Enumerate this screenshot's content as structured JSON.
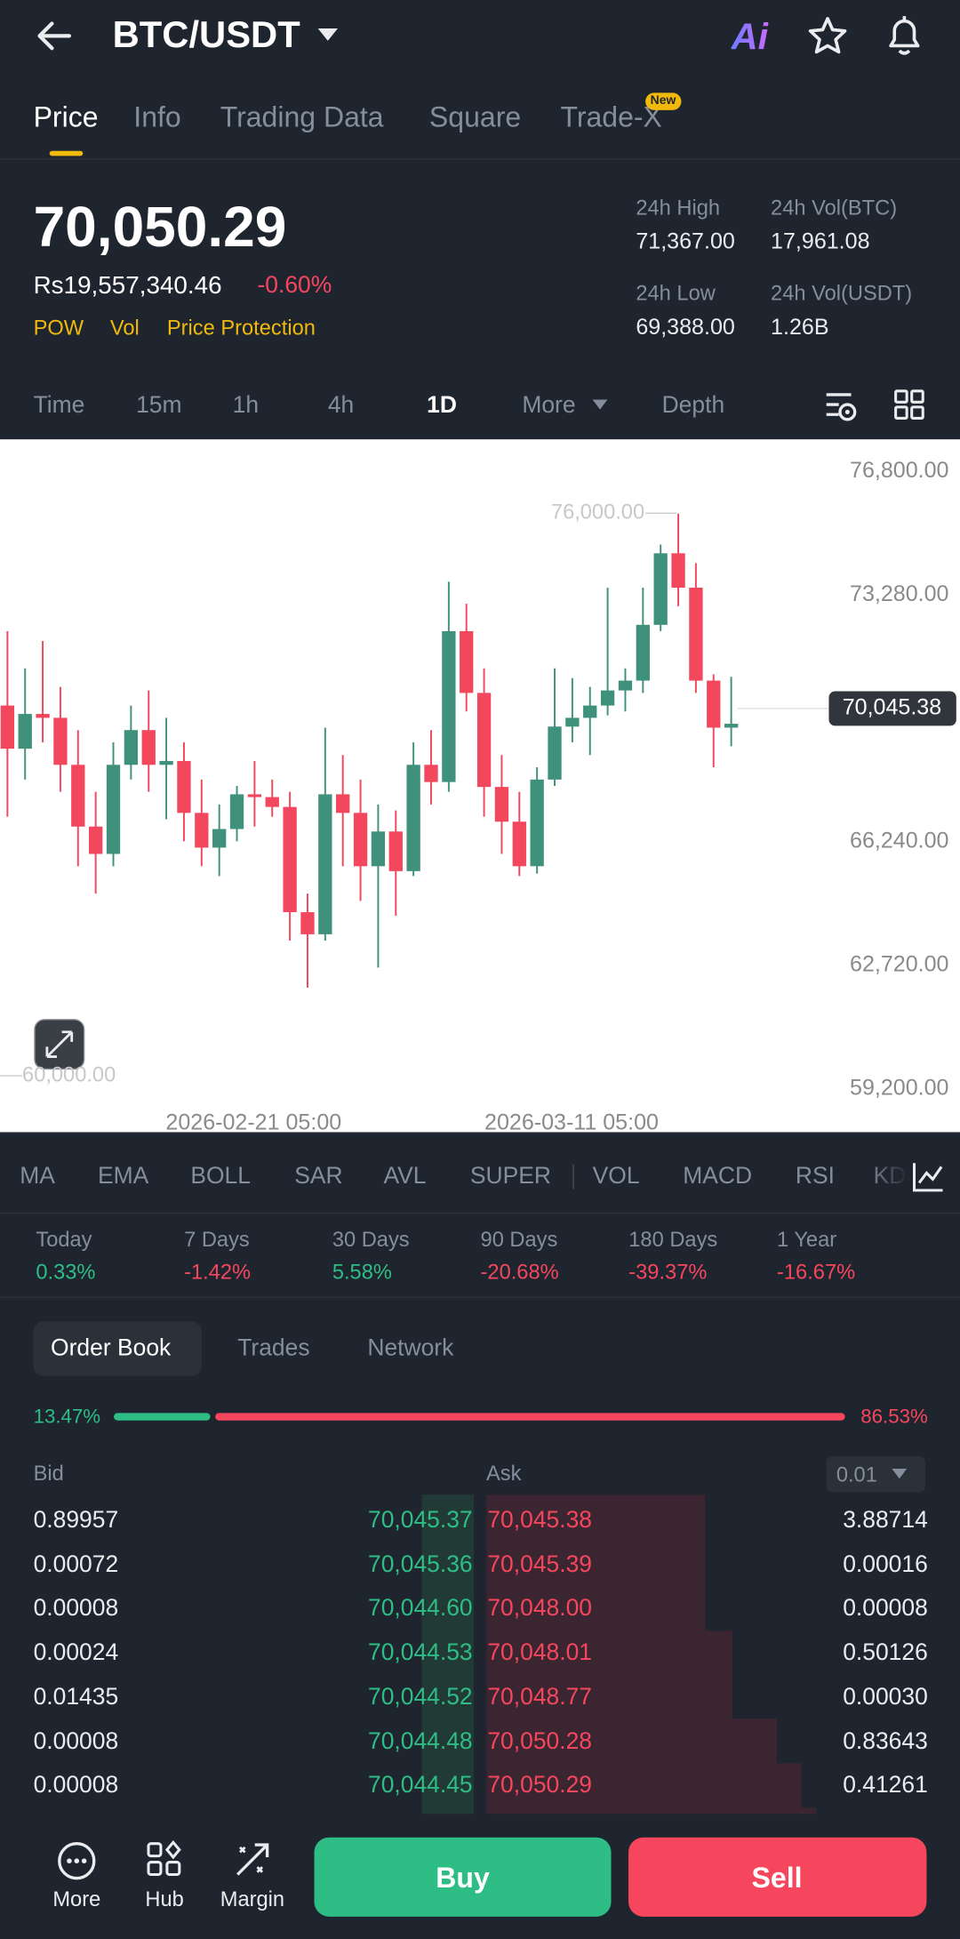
{
  "header": {
    "title": "BTC/USDT",
    "ai_button": "Ai"
  },
  "tabs": [
    "Price",
    "Info",
    "Trading Data",
    "Square",
    "Trade-X"
  ],
  "new_badge": "New",
  "ticker": {
    "price": "70,050.29",
    "fiat_price": "Rs19,557,340.46",
    "change": "-0.60%",
    "tags": [
      "POW",
      "Vol",
      "Price Protection"
    ],
    "stats": [
      {
        "label": "24h High",
        "value": "71,367.00"
      },
      {
        "label": "24h Vol(BTC)",
        "value": "17,961.08"
      },
      {
        "label": "24h Low",
        "value": "69,388.00"
      },
      {
        "label": "24h Vol(USDT)",
        "value": "1.26B"
      }
    ]
  },
  "intervals": [
    "Time",
    "15m",
    "1h",
    "4h",
    "1D",
    "More",
    "Depth"
  ],
  "chart_data": {
    "type": "candlestick",
    "ylim": [
      57970,
      77720
    ],
    "yticks": [
      {
        "value": 76800,
        "label": "76,800.00"
      },
      {
        "value": 73280,
        "label": "73,280.00"
      },
      {
        "value": 66240,
        "label": "66,240.00"
      },
      {
        "value": 62720,
        "label": "62,720.00"
      },
      {
        "value": 59200,
        "label": "59,200.00"
      }
    ],
    "open": [
      70130,
      68900,
      69890,
      69780,
      68440,
      66680,
      65900,
      68440,
      69430,
      68440,
      68550,
      67070,
      66080,
      66610,
      67600,
      67520,
      67240,
      64240,
      63610,
      67600,
      67070,
      65550,
      66540,
      65410,
      68440,
      67950,
      72250,
      70490,
      67810,
      66820,
      65550,
      68020,
      69530,
      69780,
      70130,
      70560,
      70840,
      72430,
      74470,
      73490,
      70840,
      69500
    ],
    "high": [
      72250,
      71190,
      71970,
      70660,
      69430,
      67670,
      69080,
      70130,
      70560,
      69780,
      69080,
      68020,
      67310,
      67840,
      68550,
      68020,
      67670,
      64770,
      69500,
      68720,
      68020,
      67310,
      67140,
      69080,
      69430,
      73660,
      73030,
      71190,
      68720,
      67670,
      68370,
      71190,
      70910,
      70660,
      73490,
      71190,
      73490,
      74720,
      75600,
      74190,
      71020,
      70950
    ],
    "low": [
      66960,
      68020,
      69080,
      67670,
      65550,
      64770,
      65550,
      68020,
      67670,
      66890,
      66260,
      65550,
      65270,
      66260,
      66680,
      66960,
      63430,
      62090,
      63430,
      65550,
      64560,
      62660,
      64140,
      65270,
      67310,
      67670,
      69960,
      66960,
      65900,
      65270,
      65340,
      67840,
      69080,
      68720,
      69850,
      69960,
      70490,
      72250,
      72960,
      70490,
      68370,
      68970
    ],
    "close": [
      68900,
      69890,
      69780,
      68440,
      66680,
      65900,
      68440,
      69430,
      68440,
      68550,
      67070,
      66080,
      66610,
      67600,
      67520,
      67240,
      64240,
      63610,
      67600,
      67070,
      65550,
      66540,
      65410,
      68440,
      67950,
      72250,
      70490,
      67810,
      66820,
      65550,
      68020,
      69530,
      69780,
      70130,
      70560,
      70840,
      72430,
      74470,
      73490,
      70840,
      69500,
      69610
    ],
    "up_color": "#3f917b",
    "down_color": "#f2475d",
    "last_price": {
      "value": 70045.38,
      "label": "70,045.38"
    },
    "high_marker": {
      "value": 76000,
      "label": "76,000.00"
    },
    "low_marker": {
      "value": 60000,
      "label": "60,000.00"
    },
    "x_labels": [
      "2026-02-21 05:00",
      "2026-03-11 05:00"
    ]
  },
  "indicators": [
    "MA",
    "EMA",
    "BOLL",
    "SAR",
    "AVL",
    "SUPER",
    "VOL",
    "MACD",
    "RSI",
    "KD"
  ],
  "performance": [
    {
      "period": "Today",
      "change": "0.33%"
    },
    {
      "period": "7 Days",
      "change": "-1.42%"
    },
    {
      "period": "30 Days",
      "change": "5.58%"
    },
    {
      "period": "90 Days",
      "change": "-20.68%"
    },
    {
      "period": "180 Days",
      "change": "-39.37%"
    },
    {
      "period": "1 Year",
      "change": "-16.67%"
    }
  ],
  "order_book": {
    "tabs": [
      "Order Book",
      "Trades",
      "Network"
    ],
    "bid_ratio": {
      "value": 13.47,
      "label": "13.47%"
    },
    "ask_ratio": {
      "value": 86.53,
      "label": "86.53%"
    },
    "bid_header": "Bid",
    "ask_header": "Ask",
    "precision": "0.01",
    "rows": [
      {
        "bid_qty": "0.89957",
        "bid_price": "70,045.37",
        "ask_price": "70,045.38",
        "ask_qty": "3.88714"
      },
      {
        "bid_qty": "0.00072",
        "bid_price": "70,045.36",
        "ask_price": "70,045.39",
        "ask_qty": "0.00016"
      },
      {
        "bid_qty": "0.00008",
        "bid_price": "70,044.60",
        "ask_price": "70,048.00",
        "ask_qty": "0.00008"
      },
      {
        "bid_qty": "0.00024",
        "bid_price": "70,044.53",
        "ask_price": "70,048.01",
        "ask_qty": "0.50126"
      },
      {
        "bid_qty": "0.01435",
        "bid_price": "70,044.52",
        "ask_price": "70,048.77",
        "ask_qty": "0.00030"
      },
      {
        "bid_qty": "0.00008",
        "bid_price": "70,044.48",
        "ask_price": "70,050.28",
        "ask_qty": "0.83643"
      },
      {
        "bid_qty": "0.00008",
        "bid_price": "70,044.45",
        "ask_price": "70,050.29",
        "ask_qty": "0.41261"
      }
    ]
  },
  "bottom_bar": {
    "nav": [
      "More",
      "Hub",
      "Margin"
    ],
    "buy": "Buy",
    "sell": "Sell"
  }
}
